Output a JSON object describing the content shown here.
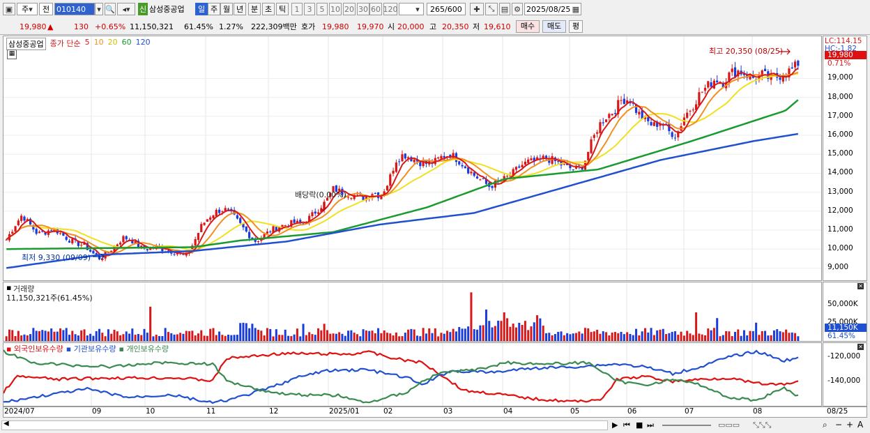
{
  "toolbar": {
    "chart_type": "주",
    "compare": "전",
    "code": "010140",
    "stock_name": "삼성중공업",
    "credit_badge": "신",
    "periods": [
      "일",
      "주",
      "월",
      "년",
      "분",
      "초",
      "틱"
    ],
    "active_period": "일",
    "intervals": [
      "1",
      "3",
      "5",
      "10",
      "20",
      "30",
      "60",
      "120"
    ],
    "count": "265",
    "count_total": "/600",
    "date": "2025/08/25"
  },
  "quote": {
    "price": "19,980",
    "change": "130",
    "change_pct": "+0.65%",
    "volume": "11,150,321",
    "vol_ratio": "61.45%",
    "turnover": "1.27%",
    "amount": "222,309백만",
    "ask_label": "호가",
    "ask": "19,980",
    "bid": "19,970",
    "open_label": "시",
    "open": "20,000",
    "high_label": "고",
    "high": "20,350",
    "low_label": "저",
    "low": "19,610",
    "buy_label": "매수",
    "sell_label": "매도",
    "avg_label": "평"
  },
  "main_pane": {
    "legend_name": "삼성중공업",
    "legend_price": "종가 단순",
    "ma_labels": [
      "5",
      "10",
      "20",
      "60",
      "120"
    ],
    "annotation_high": "최고 20,350 (08/25)",
    "annotation_low": "최저 9,330 (09/09)",
    "annotation_dividend": "배당락(0.00%)",
    "lc_label": "LC:114.15",
    "hc_label": "HC:-1.82",
    "price_tag": "19,980",
    "pct_tag": "0.71%",
    "y_ticks": [
      "19,000",
      "18,000",
      "17,000",
      "16,000",
      "15,000",
      "14,000",
      "13,000",
      "12,000",
      "11,000",
      "10,000",
      "9,000"
    ]
  },
  "volume_pane": {
    "title": "거래량",
    "value": "11,150,321주(61.45%)",
    "y_ticks": [
      "50,000K",
      "25,000K"
    ],
    "tag_value": "11,150K",
    "tag_pct": "61.45%"
  },
  "holdings_pane": {
    "legend": [
      "외국인보유수량",
      "기관보유수량",
      "개인보유수량"
    ],
    "y_ticks": [
      "-120,000",
      "-140,000"
    ]
  },
  "x_axis": [
    "2024/07",
    "09",
    "10",
    "11",
    "12",
    "2025/01",
    "02",
    "03",
    "04",
    "05",
    "06",
    "07",
    "08",
    "08/25"
  ],
  "colors": {
    "up": "#d81818",
    "down": "#1a3cd8",
    "ma5": "#d81818",
    "ma10": "#f09020",
    "ma20": "#f0e020",
    "ma60": "#1a9a30",
    "ma120": "#2050d0",
    "foreign": "#e01010",
    "institution": "#2050d0",
    "retail": "#3a8a50"
  },
  "chart_data": {
    "type": "candlestick",
    "x_start": "2024/07",
    "x_end": "2025/08/25",
    "close_path": [
      [
        0,
        10500
      ],
      [
        10,
        11200
      ],
      [
        20,
        11800
      ],
      [
        30,
        11300
      ],
      [
        40,
        10800
      ],
      [
        50,
        10900
      ],
      [
        60,
        11100
      ],
      [
        70,
        10800
      ],
      [
        80,
        10500
      ],
      [
        90,
        10300
      ],
      [
        100,
        10200
      ],
      [
        110,
        9800
      ],
      [
        120,
        9500
      ],
      [
        130,
        9800
      ],
      [
        140,
        10200
      ],
      [
        150,
        10600
      ],
      [
        160,
        10500
      ],
      [
        170,
        10100
      ],
      [
        180,
        10000
      ],
      [
        190,
        10100
      ],
      [
        200,
        10000
      ],
      [
        210,
        9900
      ],
      [
        220,
        9800
      ],
      [
        230,
        9600
      ],
      [
        240,
        10300
      ],
      [
        250,
        11200
      ],
      [
        260,
        11700
      ],
      [
        270,
        12000
      ],
      [
        280,
        12100
      ],
      [
        290,
        11800
      ],
      [
        300,
        11300
      ],
      [
        310,
        10800
      ],
      [
        320,
        10400
      ],
      [
        330,
        10700
      ],
      [
        340,
        11000
      ],
      [
        350,
        11200
      ],
      [
        360,
        11300
      ],
      [
        370,
        11400
      ],
      [
        380,
        11300
      ],
      [
        390,
        11700
      ],
      [
        400,
        12100
      ],
      [
        410,
        12500
      ],
      [
        420,
        13200
      ],
      [
        430,
        13000
      ],
      [
        440,
        12900
      ],
      [
        450,
        12800
      ],
      [
        460,
        12700
      ],
      [
        470,
        13000
      ],
      [
        480,
        12800
      ],
      [
        490,
        13500
      ],
      [
        500,
        14700
      ],
      [
        510,
        15000
      ],
      [
        520,
        14800
      ],
      [
        530,
        14600
      ],
      [
        540,
        14500
      ],
      [
        550,
        14600
      ],
      [
        560,
        14900
      ],
      [
        570,
        15000
      ],
      [
        580,
        14700
      ],
      [
        590,
        14300
      ],
      [
        600,
        13900
      ],
      [
        610,
        13600
      ],
      [
        620,
        13300
      ],
      [
        630,
        13500
      ],
      [
        640,
        13700
      ],
      [
        650,
        14000
      ],
      [
        660,
        14400
      ],
      [
        670,
        14600
      ],
      [
        680,
        14600
      ],
      [
        690,
        14800
      ],
      [
        700,
        14700
      ],
      [
        710,
        14500
      ],
      [
        720,
        14300
      ],
      [
        730,
        14200
      ],
      [
        740,
        14400
      ],
      [
        750,
        15500
      ],
      [
        760,
        16500
      ],
      [
        770,
        17000
      ],
      [
        780,
        17300
      ],
      [
        790,
        17900
      ],
      [
        800,
        17900
      ],
      [
        810,
        17200
      ],
      [
        820,
        16800
      ],
      [
        830,
        16500
      ],
      [
        840,
        16700
      ],
      [
        850,
        16200
      ],
      [
        860,
        16000
      ],
      [
        870,
        17000
      ],
      [
        880,
        17500
      ],
      [
        890,
        18200
      ],
      [
        900,
        18600
      ],
      [
        910,
        19000
      ],
      [
        920,
        18800
      ],
      [
        930,
        19300
      ],
      [
        940,
        19400
      ],
      [
        950,
        19200
      ],
      [
        960,
        19000
      ],
      [
        970,
        19200
      ],
      [
        980,
        19000
      ],
      [
        990,
        19100
      ],
      [
        1000,
        19300
      ],
      [
        1010,
        19500
      ],
      [
        1020,
        19980
      ]
    ],
    "ma60_path": [
      [
        0,
        10000
      ],
      [
        120,
        10050
      ],
      [
        240,
        10100
      ],
      [
        300,
        10450
      ],
      [
        420,
        10900
      ],
      [
        540,
        12200
      ],
      [
        640,
        13700
      ],
      [
        760,
        14200
      ],
      [
        880,
        15700
      ],
      [
        1000,
        17300
      ],
      [
        1020,
        18000
      ]
    ],
    "ma120_path": [
      [
        0,
        9000
      ],
      [
        120,
        9700
      ],
      [
        240,
        9900
      ],
      [
        360,
        10400
      ],
      [
        480,
        11300
      ],
      [
        600,
        11900
      ],
      [
        720,
        13300
      ],
      [
        840,
        14700
      ],
      [
        960,
        15700
      ],
      [
        1020,
        16100
      ]
    ],
    "annotations": [
      {
        "label": "최고",
        "value": 20350,
        "date": "08/25"
      },
      {
        "label": "최저",
        "value": 9330,
        "date": "09/09"
      }
    ],
    "y_range": [
      8500,
      21000
    ],
    "grid": true
  }
}
